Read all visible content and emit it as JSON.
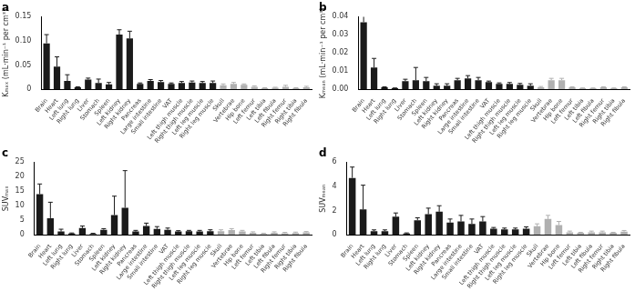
{
  "chart_data": [
    {
      "type": "bar",
      "title": "a",
      "y_label": "Kₘₐₓ (mL·min⁻¹ per cm³)",
      "categories": [
        "Brain",
        "Heart",
        "Left lung",
        "Right lung",
        "Liver",
        "Stomach",
        "Spleen",
        "Left kidney",
        "Right kidney",
        "Pancreas",
        "Large intestine",
        "Small intestine",
        "VAT",
        "Left thigh muscle",
        "Right thigh muscle",
        "Left leg muscle",
        "Right leg muscle",
        "Skull",
        "Vertebrae",
        "Hip bone",
        "Left femur",
        "Left tibia",
        "Left fibula",
        "Right femur",
        "Right tibia",
        "Right fibula"
      ],
      "values": [
        0.095,
        0.047,
        0.017,
        0.004,
        0.02,
        0.013,
        0.01,
        0.113,
        0.105,
        0.011,
        0.017,
        0.015,
        0.011,
        0.013,
        0.014,
        0.013,
        0.013,
        0.008,
        0.011,
        0.009,
        0.005,
        0.002,
        0.003,
        0.005,
        0.002,
        0.004
      ],
      "errors": [
        0.018,
        0.02,
        0.013,
        0.001,
        0.003,
        0.008,
        0.004,
        0.01,
        0.015,
        0.002,
        0.003,
        0.003,
        0.002,
        0.003,
        0.003,
        0.003,
        0.004,
        0.003,
        0.003,
        0.002,
        0.002,
        0.001,
        0.001,
        0.003,
        0.001,
        0.002
      ],
      "colors": [
        "#1a1a1a",
        "#1a1a1a",
        "#1a1a1a",
        "#1a1a1a",
        "#1a1a1a",
        "#1a1a1a",
        "#1a1a1a",
        "#1a1a1a",
        "#1a1a1a",
        "#1a1a1a",
        "#1a1a1a",
        "#1a1a1a",
        "#1a1a1a",
        "#1a1a1a",
        "#1a1a1a",
        "#1a1a1a",
        "#1a1a1a",
        "#b0b0b0",
        "#b0b0b0",
        "#b0b0b0",
        "#b0b0b0",
        "#b0b0b0",
        "#b0b0b0",
        "#b0b0b0",
        "#b0b0b0",
        "#b0b0b0"
      ],
      "ylim": [
        0,
        0.15
      ],
      "yticks": [
        0,
        0.05,
        {
          "value": 0.1,
          "label": "0.10"
        },
        0.15
      ],
      "grid": false
    },
    {
      "type": "bar",
      "title": "b",
      "y_label": "Kₘₑₐₙ (mL·min⁻¹ per cm³)",
      "categories": [
        "Brain",
        "Heart",
        "Left lung",
        "Right lung",
        "Liver",
        "Stomach",
        "Spleen",
        "Left kidney",
        "Right kidney",
        "Pancreas",
        "Large intestine",
        "Small intestine",
        "VAT",
        "Left thigh muscle",
        "Right thigh muscle",
        "Left leg muscle",
        "Right leg muscle",
        "Skull",
        "Vertebrae",
        "Hip bone",
        "Left femur",
        "Left tibia",
        "Left fibula",
        "Right femur",
        "Right tibia",
        "Right fibula"
      ],
      "values": [
        0.037,
        0.012,
        0.001,
        0.0005,
        0.0045,
        0.005,
        0.0045,
        0.002,
        0.002,
        0.005,
        0.006,
        0.005,
        0.004,
        0.003,
        0.003,
        0.0025,
        0.002,
        0.001,
        0.005,
        0.005,
        0.001,
        0.0005,
        0.0005,
        0.001,
        0.0005,
        0.001
      ],
      "errors": [
        0.004,
        0.005,
        0.0003,
        0.0002,
        0.001,
        0.007,
        0.002,
        0.001,
        0.001,
        0.001,
        0.0015,
        0.0015,
        0.0005,
        0.0005,
        0.0007,
        0.0007,
        0.001,
        0.0005,
        0.001,
        0.001,
        0.0003,
        0.0002,
        0.0002,
        0.0003,
        0.0002,
        0.0003
      ],
      "colors": [
        "#1a1a1a",
        "#1a1a1a",
        "#1a1a1a",
        "#1a1a1a",
        "#1a1a1a",
        "#1a1a1a",
        "#1a1a1a",
        "#1a1a1a",
        "#1a1a1a",
        "#1a1a1a",
        "#1a1a1a",
        "#1a1a1a",
        "#1a1a1a",
        "#1a1a1a",
        "#1a1a1a",
        "#1a1a1a",
        "#1a1a1a",
        "#b0b0b0",
        "#b0b0b0",
        "#b0b0b0",
        "#b0b0b0",
        "#b0b0b0",
        "#b0b0b0",
        "#b0b0b0",
        "#b0b0b0",
        "#b0b0b0"
      ],
      "ylim": [
        0,
        0.04
      ],
      "yticks": [
        {
          "value": 0,
          "label": "0.00"
        },
        0.01,
        0.02,
        0.03,
        0.04
      ],
      "grid": false
    },
    {
      "type": "bar",
      "title": "c",
      "y_label": "SUVₘₐₓ",
      "categories": [
        "Brain",
        "Heart",
        "Left lung",
        "Right lung",
        "Liver",
        "Stomach",
        "Spleen",
        "Left kidney",
        "Right kidney",
        "Pancreas",
        "Large intestine",
        "Small intestine",
        "VAT",
        "Left thigh muscle",
        "Right thigh muscle",
        "Left leg muscle",
        "Right leg muscle",
        "Skull",
        "Vertebrae",
        "Hip bone",
        "Left femur",
        "Left tibia",
        "Left fibula",
        "Right femur",
        "Right tibia",
        "Right fibula"
      ],
      "values": [
        14,
        5.7,
        1.1,
        0.4,
        2.3,
        0.3,
        1.7,
        6.8,
        9.3,
        1.1,
        3,
        2,
        1.7,
        1.1,
        1.2,
        1.1,
        1.2,
        1.2,
        1.6,
        1.1,
        0.7,
        0.3,
        0.7,
        0.5,
        0.6,
        0.8
      ],
      "errors": [
        3.5,
        5.5,
        0.8,
        0.2,
        0.7,
        0.2,
        0.4,
        6.5,
        12.8,
        0.4,
        1,
        0.8,
        0.6,
        0.3,
        0.3,
        0.4,
        0.5,
        0.5,
        0.5,
        0.4,
        0.3,
        0.2,
        0.3,
        0.3,
        0.3,
        0.3
      ],
      "colors": [
        "#1a1a1a",
        "#1a1a1a",
        "#1a1a1a",
        "#1a1a1a",
        "#1a1a1a",
        "#1a1a1a",
        "#1a1a1a",
        "#1a1a1a",
        "#1a1a1a",
        "#1a1a1a",
        "#1a1a1a",
        "#1a1a1a",
        "#1a1a1a",
        "#1a1a1a",
        "#1a1a1a",
        "#1a1a1a",
        "#1a1a1a",
        "#b0b0b0",
        "#b0b0b0",
        "#b0b0b0",
        "#b0b0b0",
        "#b0b0b0",
        "#b0b0b0",
        "#b0b0b0",
        "#b0b0b0",
        "#b0b0b0"
      ],
      "ylim": [
        0,
        25
      ],
      "yticks": [
        0,
        5,
        10,
        15,
        20,
        25
      ],
      "grid": false
    },
    {
      "type": "bar",
      "title": "d",
      "y_label": "SUVₘₑₐₙ",
      "categories": [
        "Brain",
        "Heart",
        "Left lung",
        "Right lung",
        "Liver",
        "Stomach",
        "Spleen",
        "Left kidney",
        "Right kidney",
        "Pancreas",
        "Large intestine",
        "Small intestine",
        "VAT",
        "Left thigh muscle",
        "Right thigh muscle",
        "Left leg muscle",
        "Right leg muscle",
        "Skull",
        "Vertebrae",
        "Hip bone",
        "Left femur",
        "Left tibia",
        "Left fibula",
        "Right femur",
        "Right tibia",
        "Right fibula"
      ],
      "values": [
        4.7,
        2.1,
        0.3,
        0.3,
        1.5,
        0.1,
        1.2,
        1.7,
        1.9,
        1.0,
        1.1,
        0.9,
        1.1,
        0.5,
        0.45,
        0.45,
        0.5,
        0.7,
        1.3,
        0.8,
        0.2,
        0.15,
        0.2,
        0.2,
        0.15,
        0.25
      ],
      "errors": [
        0.9,
        2.0,
        0.1,
        0.1,
        0.3,
        0.05,
        0.2,
        0.5,
        0.5,
        0.3,
        0.5,
        0.4,
        0.4,
        0.1,
        0.1,
        0.1,
        0.15,
        0.2,
        0.3,
        0.3,
        0.1,
        0.05,
        0.1,
        0.1,
        0.05,
        0.1
      ],
      "colors": [
        "#1a1a1a",
        "#1a1a1a",
        "#1a1a1a",
        "#1a1a1a",
        "#1a1a1a",
        "#1a1a1a",
        "#1a1a1a",
        "#1a1a1a",
        "#1a1a1a",
        "#1a1a1a",
        "#1a1a1a",
        "#1a1a1a",
        "#1a1a1a",
        "#1a1a1a",
        "#1a1a1a",
        "#1a1a1a",
        "#1a1a1a",
        "#b0b0b0",
        "#b0b0b0",
        "#b0b0b0",
        "#b0b0b0",
        "#b0b0b0",
        "#b0b0b0",
        "#b0b0b0",
        "#b0b0b0",
        "#b0b0b0"
      ],
      "ylim": [
        0,
        6
      ],
      "yticks": [
        0,
        2,
        4,
        6
      ],
      "grid": false
    }
  ]
}
